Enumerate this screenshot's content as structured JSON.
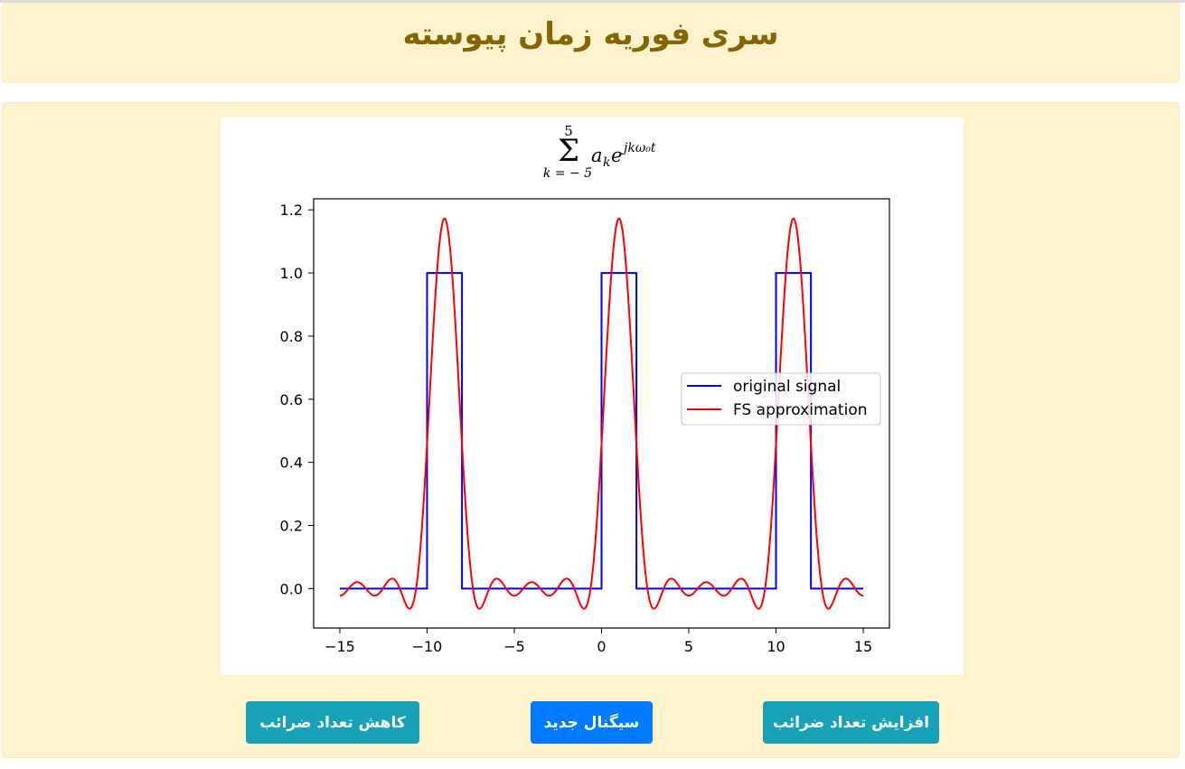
{
  "header": {
    "title": "سری فوریه زمان پیوسته"
  },
  "buttons": {
    "increase_label": "افزایش تعداد ضرائب",
    "new_signal_label": "سیگنال جدید",
    "decrease_label": "کاهش تعداد ضرائب"
  },
  "colors": {
    "card_bg": "#fff3cd",
    "title": "#856404",
    "btn_info": "#17a2b8",
    "btn_primary": "#007bff",
    "original": "#0000ff",
    "approx": "#ff0000"
  },
  "chart_data": {
    "type": "line",
    "title_formula": {
      "upper": "5",
      "sigma": "Σ",
      "lower": "k = − 5",
      "term": "a",
      "term_sub": "k",
      "base": "e",
      "exponent": "jkω₀t"
    },
    "xlim": [
      -16.5,
      16.5
    ],
    "ylim": [
      -0.125,
      1.235
    ],
    "xticks": [
      -15,
      -10,
      -5,
      0,
      5,
      10,
      15
    ],
    "xtick_labels": [
      "−15",
      "−10",
      "−5",
      "0",
      "5",
      "10",
      "15"
    ],
    "yticks": [
      0.0,
      0.2,
      0.4,
      0.6,
      0.8,
      1.0,
      1.2
    ],
    "ytick_labels": [
      "0.0",
      "0.2",
      "0.4",
      "0.6",
      "0.8",
      "1.0",
      "1.2"
    ],
    "legend_position": "center-right",
    "series": [
      {
        "name": "original signal",
        "color": "#0000ff",
        "x": [
          -15,
          -10,
          -10,
          -8,
          -8,
          0,
          0,
          2,
          2,
          10,
          10,
          12,
          12,
          15
        ],
        "y": [
          0,
          0,
          1,
          1,
          0,
          0,
          1,
          1,
          0,
          0,
          1,
          1,
          0,
          0
        ]
      },
      {
        "name": "FS approximation",
        "color": "#ff0000",
        "period": 10,
        "pulse_width": 2,
        "pulse_start": 0,
        "harmonics": 5,
        "x_range": [
          -15,
          15
        ]
      }
    ]
  }
}
